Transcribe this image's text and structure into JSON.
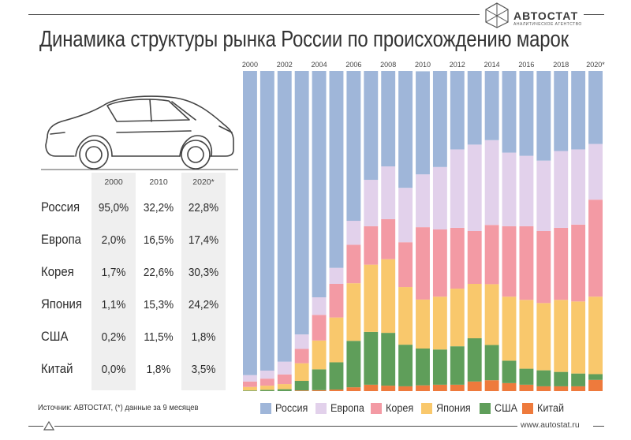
{
  "header": {
    "title": "Динамика структуры рынка России по происхождению марок",
    "brand_name": "АВТОСТАТ",
    "brand_subtitle": "аналитическое агентство"
  },
  "table": {
    "columns": [
      "2000",
      "2010",
      "2020*"
    ],
    "rows": [
      {
        "label": "Россия",
        "values": [
          "95,0%",
          "32,2%",
          "22,8%"
        ]
      },
      {
        "label": "Европа",
        "values": [
          "2,0%",
          "16,5%",
          "17,4%"
        ]
      },
      {
        "label": "Корея",
        "values": [
          "1,7%",
          "22,6%",
          "30,3%"
        ]
      },
      {
        "label": "Япония",
        "values": [
          "1,1%",
          "15,3%",
          "24,2%"
        ]
      },
      {
        "label": "США",
        "values": [
          "0,2%",
          "11,5%",
          "1,8%"
        ]
      },
      {
        "label": "Китай",
        "values": [
          "0,0%",
          "1,8%",
          "3,5%"
        ]
      }
    ]
  },
  "footer": {
    "source": "Источник: АВТОСТАТ, (*) данные за 9 месяцев",
    "url": "www.autostat.ru"
  },
  "colors": {
    "Россия": "#9fb6d9",
    "Европа": "#e2d1eb",
    "Корея": "#f39aa4",
    "Япония": "#f9c86c",
    "США": "#5f9e5a",
    "Китай": "#ee7a3c"
  },
  "chart_data": {
    "type": "bar",
    "stacked": true,
    "categories": [
      "2000",
      "2001",
      "2002",
      "2003",
      "2004",
      "2005",
      "2006",
      "2007",
      "2008",
      "2009",
      "2010",
      "2011",
      "2012",
      "2013",
      "2014",
      "2015",
      "2016",
      "2017",
      "2018",
      "2019",
      "2020*"
    ],
    "tick_labels": [
      "2000",
      "2002",
      "2004",
      "2006",
      "2008",
      "2010",
      "2012",
      "2014",
      "2016",
      "2018",
      "2020*"
    ],
    "ylim": [
      0,
      100
    ],
    "series": [
      {
        "name": "Китай",
        "values": [
          0.0,
          0.0,
          0.0,
          0.2,
          0.3,
          0.5,
          1.2,
          2.0,
          1.7,
          1.5,
          1.8,
          2.0,
          2.0,
          3.0,
          3.4,
          2.5,
          2.0,
          1.5,
          1.5,
          1.5,
          3.5
        ]
      },
      {
        "name": "США",
        "values": [
          0.2,
          0.4,
          0.6,
          3.0,
          6.5,
          8.5,
          14.5,
          16.5,
          16.5,
          13.0,
          11.5,
          11.0,
          12.0,
          13.5,
          11.0,
          7.0,
          5.0,
          5.0,
          4.5,
          4.0,
          1.8
        ]
      },
      {
        "name": "Япония",
        "values": [
          1.1,
          1.3,
          1.6,
          5.5,
          9.0,
          14.0,
          18.0,
          21.0,
          23.0,
          18.0,
          15.3,
          16.5,
          18.0,
          17.0,
          19.0,
          20.0,
          21.5,
          21.0,
          22.5,
          22.5,
          24.2
        ]
      },
      {
        "name": "Корея",
        "values": [
          1.7,
          2.2,
          3.0,
          4.5,
          8.0,
          10.5,
          12.0,
          12.0,
          12.5,
          14.0,
          22.6,
          21.0,
          19.0,
          16.5,
          18.5,
          22.0,
          23.0,
          22.5,
          22.5,
          24.0,
          30.3
        ]
      },
      {
        "name": "Европа",
        "values": [
          2.0,
          2.5,
          4.0,
          4.5,
          5.5,
          5.0,
          7.5,
          14.5,
          16.5,
          17.0,
          16.5,
          19.5,
          24.5,
          27.0,
          26.5,
          23.0,
          22.0,
          22.0,
          24.0,
          23.5,
          17.4
        ]
      },
      {
        "name": "Россия",
        "values": [
          95.0,
          93.6,
          90.8,
          82.3,
          70.7,
          61.5,
          46.8,
          34.0,
          29.8,
          36.5,
          32.2,
          30.0,
          24.5,
          23.0,
          21.6,
          25.5,
          26.5,
          28.0,
          25.0,
          24.5,
          22.8
        ]
      }
    ]
  }
}
